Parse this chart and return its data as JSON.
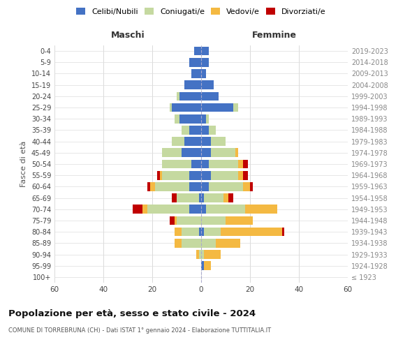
{
  "age_groups": [
    "100+",
    "95-99",
    "90-94",
    "85-89",
    "80-84",
    "75-79",
    "70-74",
    "65-69",
    "60-64",
    "55-59",
    "50-54",
    "45-49",
    "40-44",
    "35-39",
    "30-34",
    "25-29",
    "20-24",
    "15-19",
    "10-14",
    "5-9",
    "0-4"
  ],
  "birth_years": [
    "≤ 1923",
    "1924-1928",
    "1929-1933",
    "1934-1938",
    "1939-1943",
    "1944-1948",
    "1949-1953",
    "1954-1958",
    "1959-1963",
    "1964-1968",
    "1969-1973",
    "1974-1978",
    "1979-1983",
    "1984-1988",
    "1989-1993",
    "1994-1998",
    "1999-2003",
    "2004-2008",
    "2009-2013",
    "2014-2018",
    "2019-2023"
  ],
  "maschi": {
    "celibi": [
      0,
      0,
      0,
      0,
      1,
      0,
      5,
      1,
      5,
      5,
      4,
      8,
      7,
      5,
      9,
      12,
      9,
      7,
      4,
      5,
      3
    ],
    "coniugati": [
      0,
      0,
      1,
      8,
      7,
      10,
      17,
      9,
      14,
      11,
      12,
      8,
      5,
      3,
      2,
      1,
      1,
      0,
      0,
      0,
      0
    ],
    "vedovi": [
      0,
      0,
      1,
      3,
      3,
      1,
      2,
      0,
      2,
      1,
      0,
      0,
      0,
      0,
      0,
      0,
      0,
      0,
      0,
      0,
      0
    ],
    "divorziati": [
      0,
      0,
      0,
      0,
      0,
      2,
      4,
      2,
      1,
      1,
      0,
      0,
      0,
      0,
      0,
      0,
      0,
      0,
      0,
      0,
      0
    ]
  },
  "femmine": {
    "nubili": [
      0,
      1,
      0,
      0,
      1,
      0,
      2,
      1,
      3,
      4,
      3,
      4,
      4,
      3,
      2,
      13,
      7,
      5,
      2,
      3,
      3
    ],
    "coniugate": [
      0,
      0,
      1,
      6,
      7,
      10,
      16,
      8,
      14,
      11,
      12,
      10,
      6,
      3,
      1,
      2,
      0,
      0,
      0,
      0,
      0
    ],
    "vedove": [
      0,
      3,
      7,
      10,
      25,
      11,
      13,
      2,
      3,
      2,
      2,
      1,
      0,
      0,
      0,
      0,
      0,
      0,
      0,
      0,
      0
    ],
    "divorziate": [
      0,
      0,
      0,
      0,
      1,
      0,
      0,
      2,
      1,
      2,
      2,
      0,
      0,
      0,
      0,
      0,
      0,
      0,
      0,
      0,
      0
    ]
  },
  "colors": {
    "celibi": "#4472C4",
    "coniugati": "#c5d9a0",
    "vedovi": "#F4B942",
    "divorziati": "#C00000"
  },
  "xlim": 60,
  "title": "Popolazione per età, sesso e stato civile - 2024",
  "subtitle": "COMUNE DI TORREBRUNA (CH) - Dati ISTAT 1° gennaio 2024 - Elaborazione TUTTITALIA.IT",
  "ylabel_left": "Fasce di età",
  "xlabel_maschi": "Maschi",
  "xlabel_femmine": "Femmine",
  "legend_labels": [
    "Celibi/Nubili",
    "Coniugati/e",
    "Vedovi/e",
    "Divorziati/e"
  ]
}
